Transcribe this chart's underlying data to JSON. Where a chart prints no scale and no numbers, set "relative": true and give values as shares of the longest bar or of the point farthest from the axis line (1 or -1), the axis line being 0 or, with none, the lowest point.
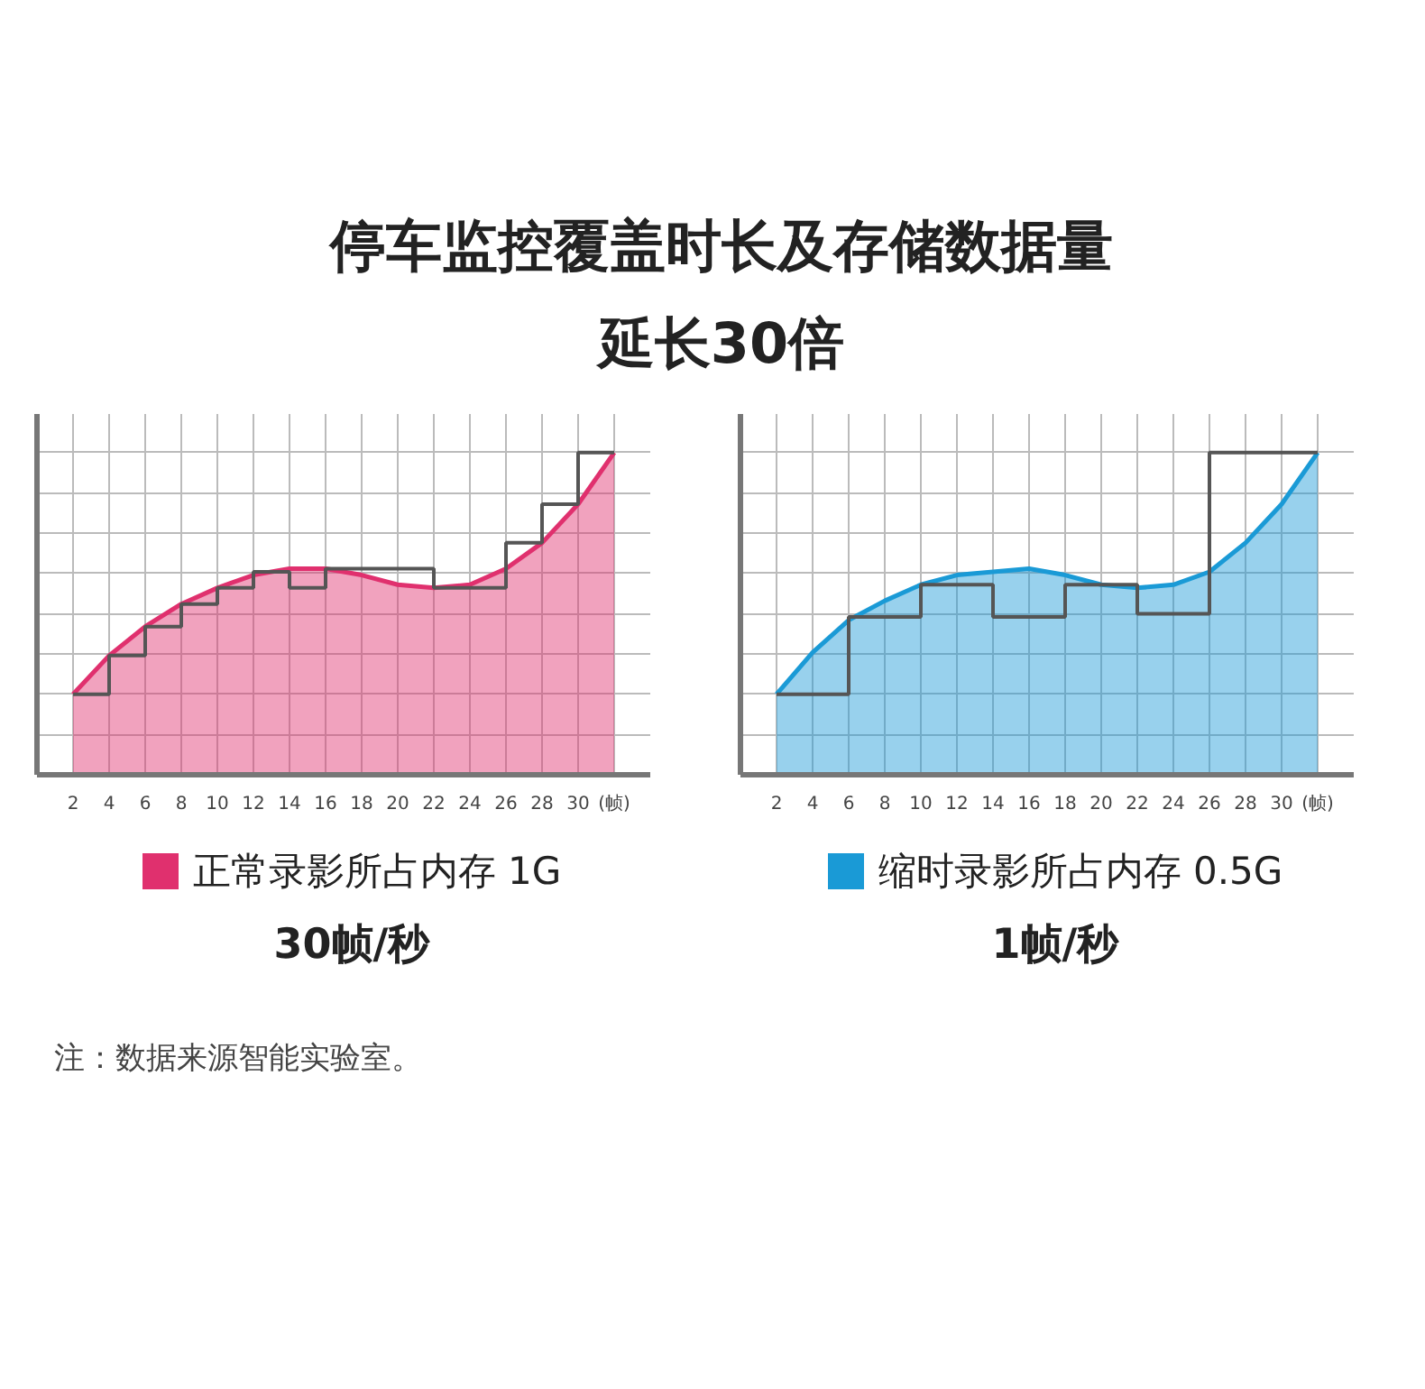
{
  "chart_data": [
    {
      "type": "area",
      "title": "停车监控覆盖时长及存储数据量",
      "subtitle": "延长30倍",
      "relative": true,
      "x": [
        2,
        4,
        6,
        8,
        10,
        12,
        14,
        16,
        18,
        20,
        22,
        24,
        26,
        28,
        30,
        32
      ],
      "xlim": [
        0,
        34
      ],
      "xticks": [
        2,
        4,
        6,
        8,
        10,
        12,
        14,
        16,
        18,
        20,
        22,
        24,
        26,
        28,
        30,
        {
          "value": 32,
          "label": "(帧)"
        }
      ],
      "tick_labels": "x",
      "grid": true,
      "legend": "bottom",
      "series": [
        {
          "name": "正常录影所占内存 1G",
          "color": "#e0306e",
          "values": [
            0.25,
            0.37,
            0.46,
            0.53,
            0.58,
            0.62,
            0.64,
            0.64,
            0.62,
            0.59,
            0.58,
            0.59,
            0.64,
            0.72,
            0.84,
            1.0
          ]
        },
        {
          "type": "step",
          "color": "#555555",
          "values": [
            0.25,
            0.37,
            0.46,
            0.53,
            0.58,
            0.63,
            0.58,
            0.64,
            0.64,
            0.64,
            0.58,
            0.58,
            0.72,
            0.84,
            1.0,
            1.0
          ]
        }
      ],
      "annotations": [
        "30帧/秒"
      ]
    },
    {
      "type": "area",
      "relative": true,
      "x": [
        2,
        4,
        6,
        8,
        10,
        12,
        14,
        16,
        18,
        20,
        22,
        24,
        26,
        28,
        30,
        32
      ],
      "xlim": [
        0,
        34
      ],
      "xticks": [
        2,
        4,
        6,
        8,
        10,
        12,
        14,
        16,
        18,
        20,
        22,
        24,
        26,
        28,
        30,
        {
          "value": 32,
          "label": "(帧)"
        }
      ],
      "tick_labels": "x",
      "grid": true,
      "legend": "bottom",
      "series": [
        {
          "name": "缩时录影所占内存 0.5G",
          "color": "#1a9ad6",
          "values": [
            0.25,
            0.38,
            0.48,
            0.54,
            0.59,
            0.62,
            0.63,
            0.64,
            0.62,
            0.59,
            0.58,
            0.59,
            0.63,
            0.72,
            0.84,
            1.0
          ]
        },
        {
          "type": "step",
          "color": "#555555",
          "x": [
            2,
            6,
            10,
            14,
            18,
            22,
            26,
            32
          ],
          "values": [
            0.25,
            0.49,
            0.59,
            0.49,
            0.59,
            0.5,
            1.0,
            1.0
          ]
        }
      ],
      "annotations": [
        "1帧/秒",
        "注：数据来源智能实验室。"
      ]
    }
  ]
}
